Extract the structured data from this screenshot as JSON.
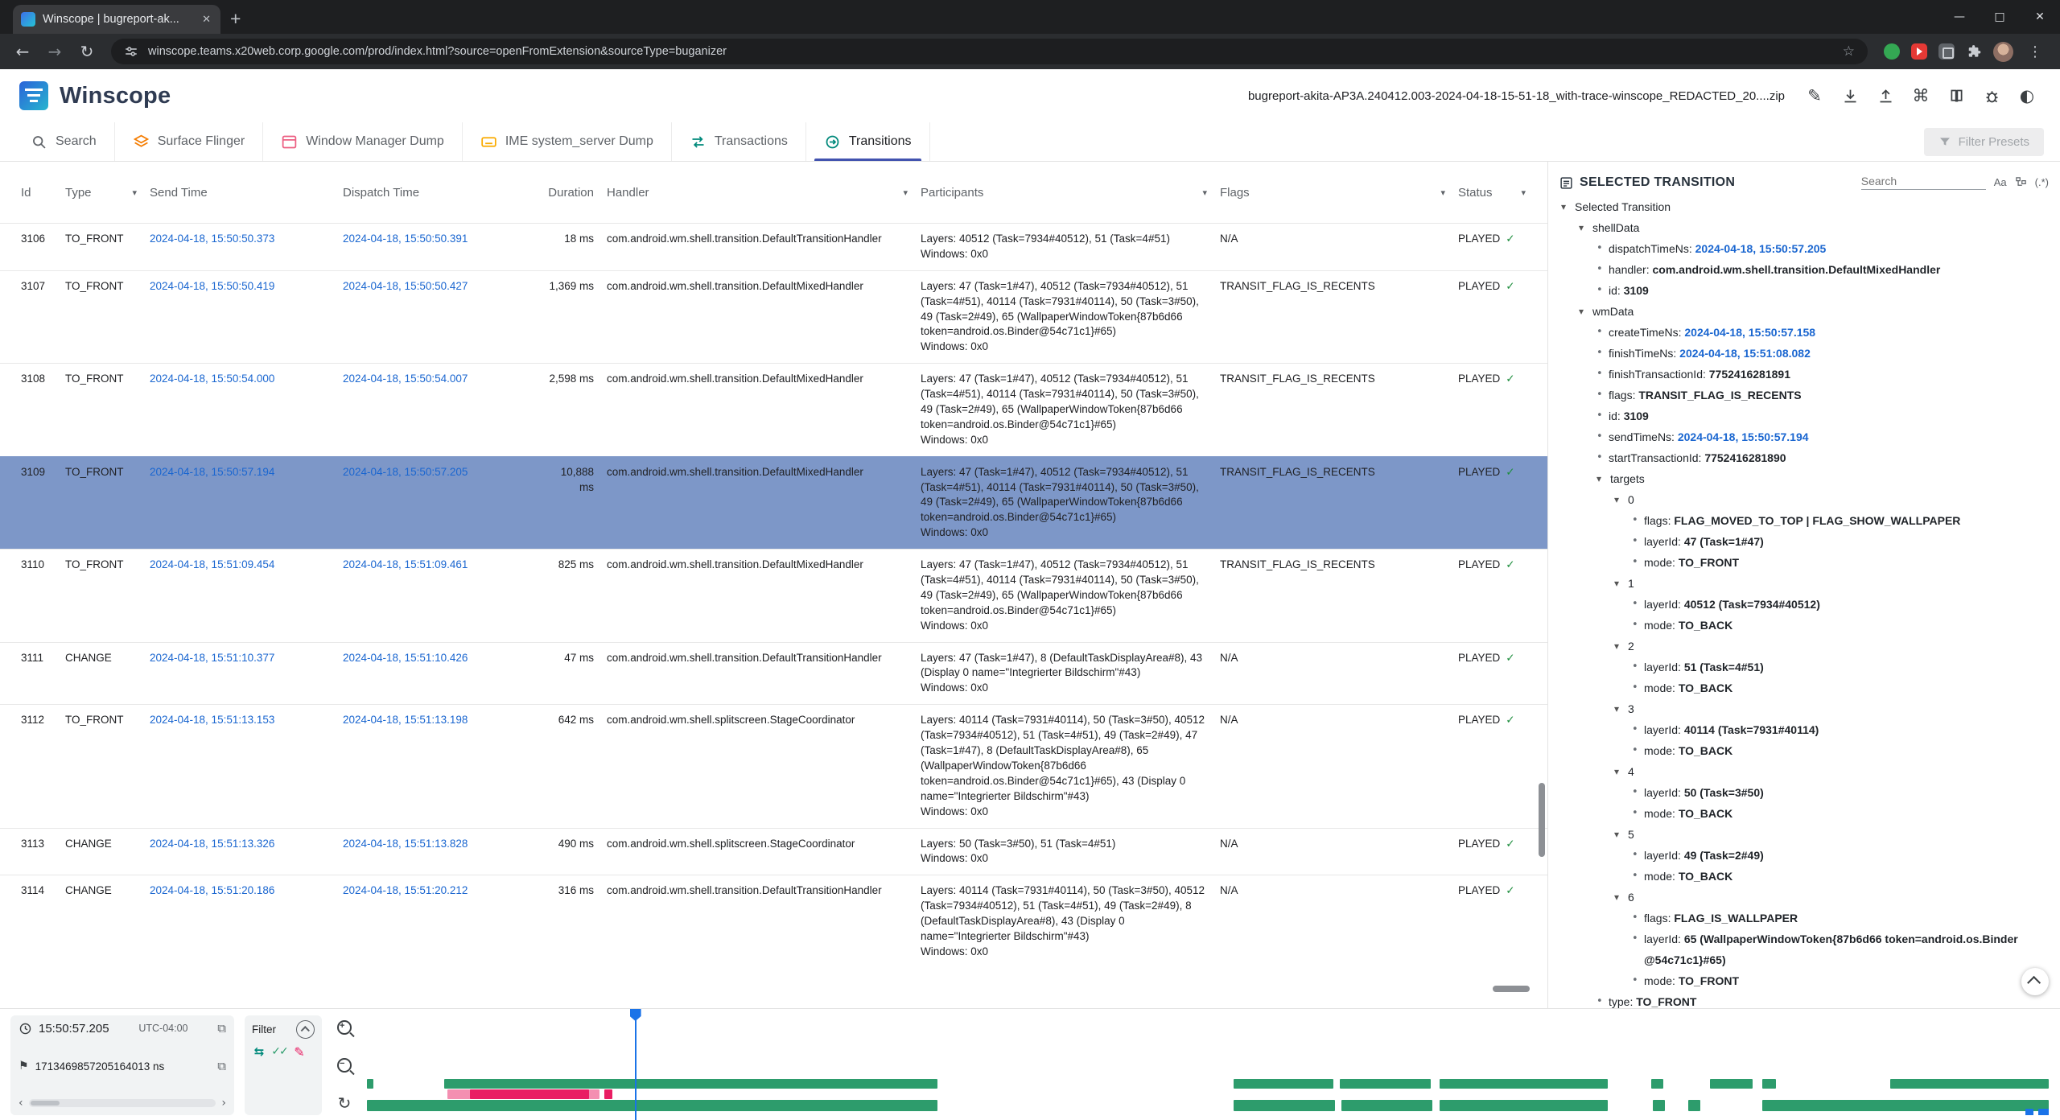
{
  "colors": {
    "accent_blue": "#1a73e8",
    "selected_row": "#7d97c8",
    "timeline_green": "#2d9c6c",
    "timeline_pink_dark": "#e91e63",
    "timeline_pink_light": "#f48fb1",
    "status_check_green": "#1e8e3e",
    "active_tab_underline": "#4253af"
  },
  "icons": {
    "close": "✕",
    "plus": "+",
    "minimize": "—",
    "maximize": "□",
    "back": "←",
    "forward": "→",
    "reload": "↻",
    "star": "☆",
    "kebab": "⋮",
    "copy": "⧉",
    "flag": "⚑",
    "pencil": "✎",
    "command": "⌘",
    "contrast": "◐",
    "caret": "▾",
    "bullet": "•",
    "chev_left": "‹",
    "chev_right": "›",
    "check": "✓",
    "match_case": "Aa",
    "regex": "(.*)",
    "reset": "↻",
    "double_check": "✓✓",
    "swap": "⇆"
  },
  "browser": {
    "tab_title": "Winscope | bugreport-ak...",
    "url": "winscope.teams.x20web.corp.google.com/prod/index.html?source=openFromExtension&sourceType=buganizer"
  },
  "header": {
    "app_name": "Winscope",
    "file_name": "bugreport-akita-AP3A.240412.003-2024-04-18-15-51-18_with-trace-winscope_REDACTED_20....zip"
  },
  "nav_tabs": [
    {
      "label": "Search"
    },
    {
      "label": "Surface Flinger"
    },
    {
      "label": "Window Manager Dump"
    },
    {
      "label": "IME system_server Dump"
    },
    {
      "label": "Transactions"
    },
    {
      "label": "Transitions",
      "active": true
    }
  ],
  "filter_presets_label": "Filter Presets",
  "table": {
    "columns": [
      "Id",
      "Type",
      "Send Time",
      "Dispatch Time",
      "Duration",
      "Handler",
      "Participants",
      "Flags",
      "Status"
    ],
    "rows": [
      {
        "id": "3106",
        "type": "TO_FRONT",
        "send": "2024-04-18, 15:50:50.373",
        "dispatch": "2024-04-18, 15:50:50.391",
        "duration": "18 ms",
        "handler": "com.android.wm.shell.transition.DefaultTransitionHandler",
        "layers": "Layers: 40512 (Task=7934#40512), 51 (Task=4#51)",
        "windows": "Windows: 0x0",
        "flags": "N/A",
        "status": "PLAYED"
      },
      {
        "id": "3107",
        "type": "TO_FRONT",
        "send": "2024-04-18, 15:50:50.419",
        "dispatch": "2024-04-18, 15:50:50.427",
        "duration": "1,369 ms",
        "handler": "com.android.wm.shell.transition.DefaultMixedHandler",
        "layers": "Layers: 47 (Task=1#47), 40512 (Task=7934#40512), 51 (Task=4#51), 40114 (Task=7931#40114), 50 (Task=3#50), 49 (Task=2#49), 65 (WallpaperWindowToken{87b6d66 token=android.os.Binder@54c71c1}#65)",
        "windows": "Windows: 0x0",
        "flags": "TRANSIT_FLAG_IS_RECENTS",
        "status": "PLAYED"
      },
      {
        "id": "3108",
        "type": "TO_FRONT",
        "send": "2024-04-18, 15:50:54.000",
        "dispatch": "2024-04-18, 15:50:54.007",
        "duration": "2,598 ms",
        "handler": "com.android.wm.shell.transition.DefaultMixedHandler",
        "layers": "Layers: 47 (Task=1#47), 40512 (Task=7934#40512), 51 (Task=4#51), 40114 (Task=7931#40114), 50 (Task=3#50), 49 (Task=2#49), 65 (WallpaperWindowToken{87b6d66 token=android.os.Binder@54c71c1}#65)",
        "windows": "Windows: 0x0",
        "flags": "TRANSIT_FLAG_IS_RECENTS",
        "status": "PLAYED"
      },
      {
        "id": "3109",
        "type": "TO_FRONT",
        "send": "2024-04-18, 15:50:57.194",
        "dispatch": "2024-04-18, 15:50:57.205",
        "duration": "10,888 ms",
        "handler": "com.android.wm.shell.transition.DefaultMixedHandler",
        "layers": "Layers: 47 (Task=1#47), 40512 (Task=7934#40512), 51 (Task=4#51), 40114 (Task=7931#40114), 50 (Task=3#50), 49 (Task=2#49), 65 (WallpaperWindowToken{87b6d66 token=android.os.Binder@54c71c1}#65)",
        "windows": "Windows: 0x0",
        "flags": "TRANSIT_FLAG_IS_RECENTS",
        "status": "PLAYED",
        "selected": true
      },
      {
        "id": "3110",
        "type": "TO_FRONT",
        "send": "2024-04-18, 15:51:09.454",
        "dispatch": "2024-04-18, 15:51:09.461",
        "duration": "825 ms",
        "handler": "com.android.wm.shell.transition.DefaultMixedHandler",
        "layers": "Layers: 47 (Task=1#47), 40512 (Task=7934#40512), 51 (Task=4#51), 40114 (Task=7931#40114), 50 (Task=3#50), 49 (Task=2#49), 65 (WallpaperWindowToken{87b6d66 token=android.os.Binder@54c71c1}#65)",
        "windows": "Windows: 0x0",
        "flags": "TRANSIT_FLAG_IS_RECENTS",
        "status": "PLAYED"
      },
      {
        "id": "3111",
        "type": "CHANGE",
        "send": "2024-04-18, 15:51:10.377",
        "dispatch": "2024-04-18, 15:51:10.426",
        "duration": "47 ms",
        "handler": "com.android.wm.shell.transition.DefaultTransitionHandler",
        "layers": "Layers: 47 (Task=1#47), 8 (DefaultTaskDisplayArea#8), 43 (Display 0 name=\"Integrierter Bildschirm\"#43)",
        "windows": "Windows: 0x0",
        "flags": "N/A",
        "status": "PLAYED"
      },
      {
        "id": "3112",
        "type": "TO_FRONT",
        "send": "2024-04-18, 15:51:13.153",
        "dispatch": "2024-04-18, 15:51:13.198",
        "duration": "642 ms",
        "handler": "com.android.wm.shell.splitscreen.StageCoordinator",
        "layers": "Layers: 40114 (Task=7931#40114), 50 (Task=3#50), 40512 (Task=7934#40512), 51 (Task=4#51), 49 (Task=2#49), 47 (Task=1#47), 8 (DefaultTaskDisplayArea#8), 65 (WallpaperWindowToken{87b6d66 token=android.os.Binder@54c71c1}#65), 43 (Display 0 name=\"Integrierter Bildschirm\"#43)",
        "windows": "Windows: 0x0",
        "flags": "N/A",
        "status": "PLAYED"
      },
      {
        "id": "3113",
        "type": "CHANGE",
        "send": "2024-04-18, 15:51:13.326",
        "dispatch": "2024-04-18, 15:51:13.828",
        "duration": "490 ms",
        "handler": "com.android.wm.shell.splitscreen.StageCoordinator",
        "layers": "Layers: 50 (Task=3#50), 51 (Task=4#51)",
        "windows": "Windows: 0x0",
        "flags": "N/A",
        "status": "PLAYED"
      },
      {
        "id": "3114",
        "type": "CHANGE",
        "send": "2024-04-18, 15:51:20.186",
        "dispatch": "2024-04-18, 15:51:20.212",
        "duration": "316 ms",
        "handler": "com.android.wm.shell.transition.DefaultTransitionHandler",
        "layers": "Layers: 40114 (Task=7931#40114), 50 (Task=3#50), 40512 (Task=7934#40512), 51 (Task=4#51), 49 (Task=2#49), 8 (DefaultTaskDisplayArea#8), 43 (Display 0 name=\"Integrierter Bildschirm\"#43)",
        "windows": "Windows: 0x0",
        "flags": "N/A",
        "status": "PLAYED"
      }
    ]
  },
  "details": {
    "panel_title": "SELECTED TRANSITION",
    "search_placeholder": "Search",
    "tree": {
      "label": "Selected Transition",
      "children": [
        {
          "label": "shellData",
          "children": [
            {
              "key": "dispatchTimeNs",
              "value": "2024-04-18, 15:50:57.205",
              "time": true
            },
            {
              "key": "handler",
              "value": "com.android.wm.shell.transition.DefaultMixedHandler"
            },
            {
              "key": "id",
              "value": "3109"
            }
          ]
        },
        {
          "label": "wmData",
          "children": [
            {
              "key": "createTimeNs",
              "value": "2024-04-18, 15:50:57.158",
              "time": true
            },
            {
              "key": "finishTimeNs",
              "value": "2024-04-18, 15:51:08.082",
              "time": true
            },
            {
              "key": "finishTransactionId",
              "value": "7752416281891"
            },
            {
              "key": "flags",
              "value": "TRANSIT_FLAG_IS_RECENTS"
            },
            {
              "key": "id",
              "value": "3109"
            },
            {
              "key": "sendTimeNs",
              "value": "2024-04-18, 15:50:57.194",
              "time": true
            },
            {
              "key": "startTransactionId",
              "value": "7752416281890"
            },
            {
              "label": "targets",
              "children": [
                {
                  "label": "0",
                  "children": [
                    {
                      "key": "flags",
                      "value": "FLAG_MOVED_TO_TOP | FLAG_SHOW_WALLPAPER"
                    },
                    {
                      "key": "layerId",
                      "value": "47 (Task=1#47)"
                    },
                    {
                      "key": "mode",
                      "value": "TO_FRONT"
                    }
                  ]
                },
                {
                  "label": "1",
                  "children": [
                    {
                      "key": "layerId",
                      "value": "40512 (Task=7934#40512)"
                    },
                    {
                      "key": "mode",
                      "value": "TO_BACK"
                    }
                  ]
                },
                {
                  "label": "2",
                  "children": [
                    {
                      "key": "layerId",
                      "value": "51 (Task=4#51)"
                    },
                    {
                      "key": "mode",
                      "value": "TO_BACK"
                    }
                  ]
                },
                {
                  "label": "3",
                  "children": [
                    {
                      "key": "layerId",
                      "value": "40114 (Task=7931#40114)"
                    },
                    {
                      "key": "mode",
                      "value": "TO_BACK"
                    }
                  ]
                },
                {
                  "label": "4",
                  "children": [
                    {
                      "key": "layerId",
                      "value": "50 (Task=3#50)"
                    },
                    {
                      "key": "mode",
                      "value": "TO_BACK"
                    }
                  ]
                },
                {
                  "label": "5",
                  "children": [
                    {
                      "key": "layerId",
                      "value": "49 (Task=2#49)"
                    },
                    {
                      "key": "mode",
                      "value": "TO_BACK"
                    }
                  ]
                },
                {
                  "label": "6",
                  "children": [
                    {
                      "key": "flags",
                      "value": "FLAG_IS_WALLPAPER"
                    },
                    {
                      "key": "layerId",
                      "value": "65 (WallpaperWindowToken{87b6d66 token=android.os.Binder @54c71c1}#65)"
                    },
                    {
                      "key": "mode",
                      "value": "TO_FRONT"
                    }
                  ]
                }
              ]
            },
            {
              "key": "type",
              "value": "TO_FRONT"
            }
          ]
        }
      ]
    }
  },
  "timeline": {
    "time": "15:50:57.205",
    "timezone": "UTC-04:00",
    "timestamp_ns": "1713469857205164013 ns",
    "filter_label": "Filter",
    "cursor_pct": 15.9,
    "tracks": [
      {
        "name": "timeline-track-transitions-top",
        "cls": "t1",
        "segments": [
          [
            0,
            0.4
          ],
          [
            4.6,
            29.3
          ],
          [
            51.5,
            5.9
          ],
          [
            57.8,
            5.4
          ],
          [
            63.7,
            10.0
          ],
          [
            76.3,
            0.7
          ],
          [
            79.8,
            2.5
          ],
          [
            82.9,
            0.8
          ],
          [
            90.5,
            9.4
          ]
        ]
      },
      {
        "name": "timeline-track-highlight",
        "cls": "tp",
        "segments": [
          [
            4.8,
            9.0,
            "light"
          ],
          [
            6.1,
            7.1,
            "dark"
          ],
          [
            14.1,
            0.5,
            "dark"
          ]
        ]
      },
      {
        "name": "timeline-track-transitions-bottom",
        "cls": "t2",
        "segments": [
          [
            0,
            33.9
          ],
          [
            51.5,
            6.0
          ],
          [
            57.9,
            5.4
          ],
          [
            63.7,
            10.0
          ],
          [
            76.4,
            0.7
          ],
          [
            78.5,
            0.7
          ],
          [
            82.9,
            17.0
          ]
        ]
      }
    ],
    "end_markers": [
      [
        98.5,
        0.5
      ],
      [
        99.3,
        0.6
      ]
    ]
  }
}
